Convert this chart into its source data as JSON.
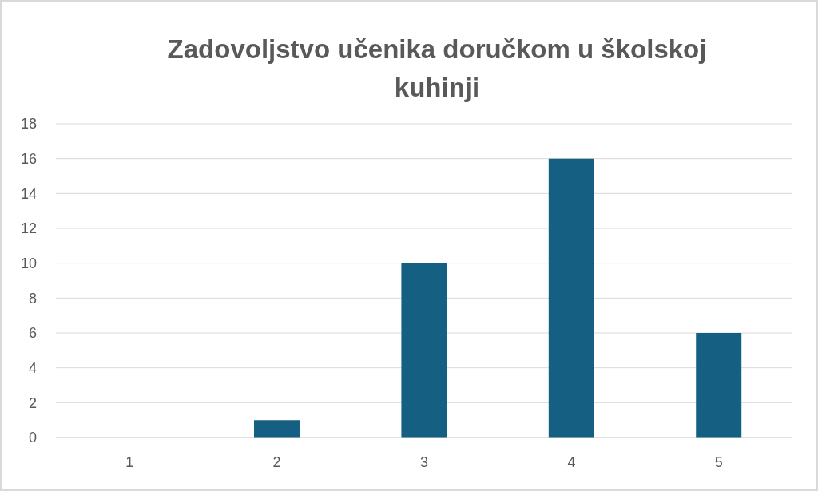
{
  "chart_data": {
    "type": "bar",
    "title": "Zadovoljstvo učenika doručkom u školskoj kuhinji",
    "categories": [
      "1",
      "2",
      "3",
      "4",
      "5"
    ],
    "values": [
      0,
      1,
      10,
      16,
      6
    ],
    "color": "#156082",
    "ylim": [
      0,
      18
    ],
    "yticks": [
      0,
      2,
      4,
      6,
      8,
      10,
      12,
      14,
      16,
      18
    ],
    "grid": "y"
  }
}
